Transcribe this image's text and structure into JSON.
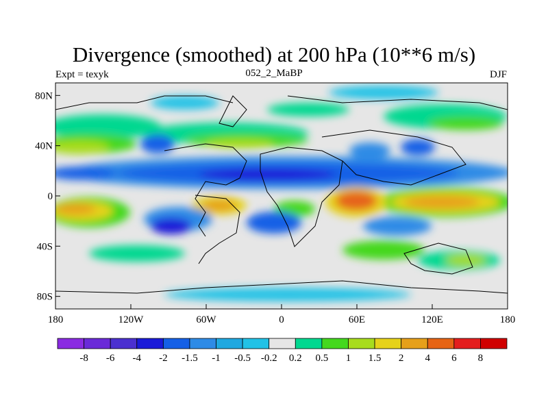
{
  "title": "Divergence (smoothed) at 200 hPa (10**6 m/s)",
  "left_label": "Expt = texyk",
  "center_label": "052_2_MaBP",
  "right_label": "DJF",
  "chart_data": {
    "type": "heatmap",
    "title": "Divergence (smoothed) at 200 hPa (10**6 m/s)",
    "x_ticks": [
      {
        "value": -180,
        "label": "180"
      },
      {
        "value": -120,
        "label": "120W"
      },
      {
        "value": -60,
        "label": "60W"
      },
      {
        "value": 0,
        "label": "0"
      },
      {
        "value": 60,
        "label": "60E"
      },
      {
        "value": 120,
        "label": "120E"
      },
      {
        "value": 180,
        "label": "180"
      }
    ],
    "y_ticks": [
      {
        "value": 80,
        "label": "80N"
      },
      {
        "value": 40,
        "label": "40N"
      },
      {
        "value": 0,
        "label": "0"
      },
      {
        "value": -40,
        "label": "40S"
      },
      {
        "value": -80,
        "label": "80S"
      }
    ],
    "xlim": [
      -180,
      180
    ],
    "ylim": [
      -90,
      90
    ],
    "colorbar": {
      "labels": [
        "-8",
        "-6",
        "-4",
        "-2",
        "-1.5",
        "-1",
        "-0.5",
        "-0.2",
        "0.2",
        "0.5",
        "1",
        "1.5",
        "2",
        "4",
        "6",
        "8"
      ],
      "colors": [
        "#8a2be2",
        "#6a2ad8",
        "#4b30d0",
        "#1a1ad8",
        "#1560e6",
        "#2e8be6",
        "#1fa8e0",
        "#22c2e6",
        "#e6e6e6",
        "#00d890",
        "#44d81e",
        "#a8dc1e",
        "#e6d21a",
        "#e6a01a",
        "#e66414",
        "#e41e1e",
        "#d00000"
      ]
    }
  }
}
